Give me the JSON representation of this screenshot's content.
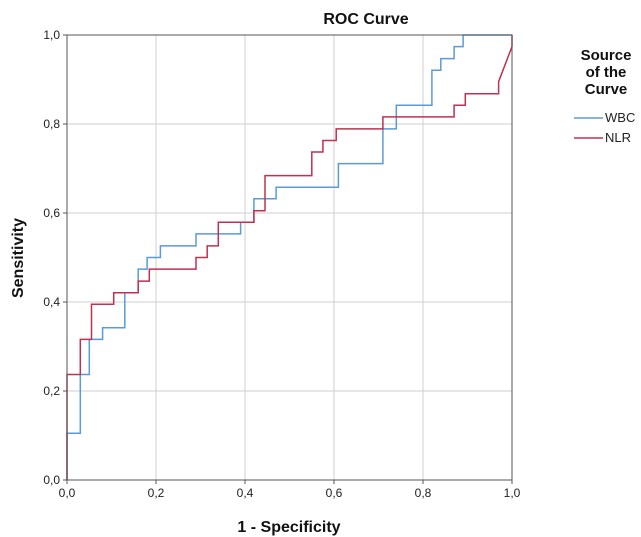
{
  "chart_data": {
    "type": "line",
    "title": "ROC Curve",
    "xlabel": "1 - Specificity",
    "ylabel": "Sensitivity",
    "xlim": [
      0,
      1
    ],
    "ylim": [
      0,
      1
    ],
    "grid": true,
    "x_ticks": [
      "0,0",
      "0,2",
      "0,4",
      "0,6",
      "0,8",
      "1,0"
    ],
    "y_ticks": [
      "0,0",
      "0,2",
      "0,4",
      "0,6",
      "0,8",
      "1,0"
    ],
    "legend": {
      "title_lines": [
        "Source",
        "of the",
        "Curve"
      ],
      "placement": "right"
    },
    "series": [
      {
        "name": "WBC",
        "color": "#5b9bd5",
        "x": [
          0.0,
          0.0,
          0.03,
          0.03,
          0.05,
          0.05,
          0.08,
          0.08,
          0.13,
          0.13,
          0.16,
          0.16,
          0.18,
          0.18,
          0.21,
          0.21,
          0.29,
          0.29,
          0.39,
          0.39,
          0.42,
          0.42,
          0.47,
          0.47,
          0.61,
          0.61,
          0.71,
          0.71,
          0.74,
          0.74,
          0.82,
          0.82,
          0.84,
          0.84,
          0.87,
          0.87,
          0.89,
          0.89,
          1.0
        ],
        "y": [
          0.0,
          0.105,
          0.105,
          0.237,
          0.237,
          0.316,
          0.316,
          0.342,
          0.342,
          0.421,
          0.421,
          0.474,
          0.474,
          0.5,
          0.5,
          0.526,
          0.526,
          0.553,
          0.553,
          0.579,
          0.579,
          0.632,
          0.632,
          0.658,
          0.658,
          0.711,
          0.711,
          0.789,
          0.789,
          0.842,
          0.842,
          0.921,
          0.921,
          0.947,
          0.947,
          0.974,
          0.974,
          1.0,
          1.0
        ]
      },
      {
        "name": "NLR",
        "color": "#c0304f",
        "x": [
          0.0,
          0.0,
          0.03,
          0.03,
          0.055,
          0.055,
          0.105,
          0.105,
          0.16,
          0.16,
          0.185,
          0.185,
          0.29,
          0.29,
          0.315,
          0.315,
          0.34,
          0.34,
          0.42,
          0.42,
          0.445,
          0.445,
          0.55,
          0.55,
          0.575,
          0.575,
          0.605,
          0.605,
          0.71,
          0.71,
          0.87,
          0.87,
          0.895,
          0.895,
          0.97,
          0.97,
          1.0,
          1.0
        ],
        "y": [
          0.0,
          0.237,
          0.237,
          0.316,
          0.316,
          0.395,
          0.395,
          0.421,
          0.421,
          0.447,
          0.447,
          0.474,
          0.474,
          0.5,
          0.5,
          0.526,
          0.526,
          0.579,
          0.579,
          0.605,
          0.605,
          0.684,
          0.684,
          0.737,
          0.737,
          0.763,
          0.763,
          0.789,
          0.789,
          0.816,
          0.816,
          0.842,
          0.842,
          0.868,
          0.868,
          0.895,
          0.974,
          1.0
        ]
      }
    ]
  }
}
